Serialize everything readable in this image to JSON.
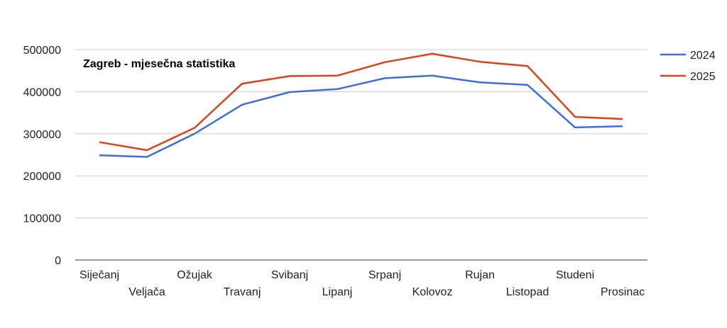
{
  "chart_data": {
    "type": "line",
    "title": "Zagreb - mjesečna statistika",
    "categories": [
      "Siječanj",
      "Veljača",
      "Ožujak",
      "Travanj",
      "Svibanj",
      "Lipanj",
      "Srpanj",
      "Kolovoz",
      "Rujan",
      "Listopad",
      "Studeni",
      "Prosinac"
    ],
    "y_ticks": [
      "0",
      "100000",
      "200000",
      "300000",
      "400000",
      "500000"
    ],
    "ylim": [
      0,
      500000
    ],
    "grid": true,
    "legend_position": "right",
    "series": [
      {
        "name": "2024",
        "color": "#3f6fd3",
        "values": [
          249000,
          245000,
          300000,
          369000,
          399000,
          406000,
          432000,
          438000,
          422000,
          416000,
          315000,
          318000
        ]
      },
      {
        "name": "2025",
        "color": "#d9431f",
        "values": [
          280000,
          261000,
          314000,
          419000,
          437000,
          438000,
          470000,
          490000,
          471000,
          461000,
          340000,
          335000
        ]
      }
    ]
  }
}
